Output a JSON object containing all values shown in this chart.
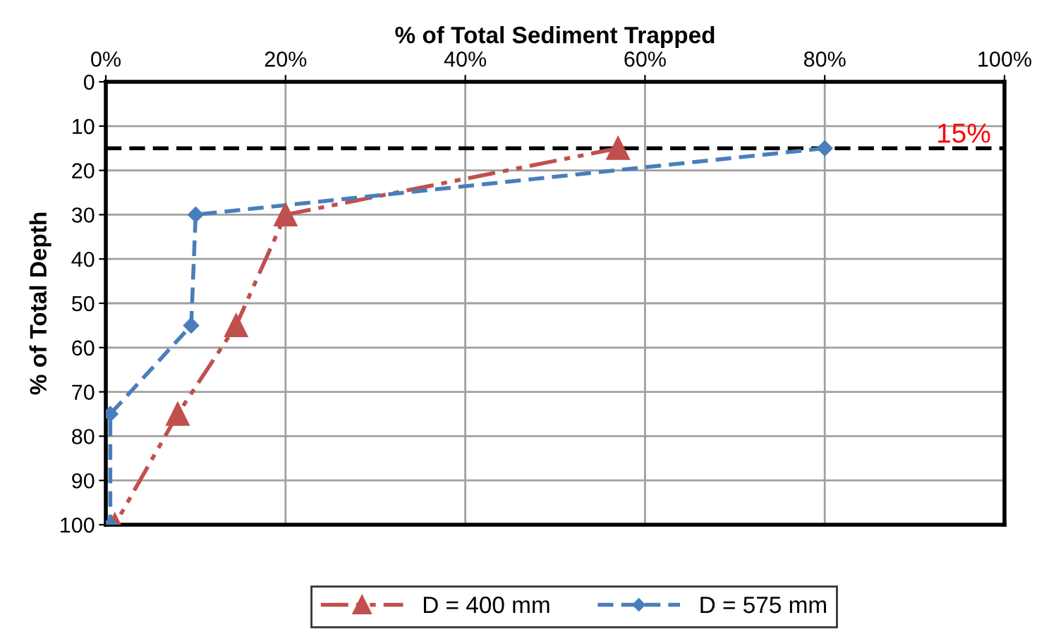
{
  "chart_data": {
    "type": "line",
    "xlabel": "% of Total Sediment Trapped",
    "ylabel": "% of Total Depth",
    "xlim": [
      0,
      100
    ],
    "xticks": [
      {
        "value": 0,
        "label": "0%"
      },
      {
        "value": 20,
        "label": "20%"
      },
      {
        "value": 40,
        "label": "40%"
      },
      {
        "value": 60,
        "label": "60%"
      },
      {
        "value": 80,
        "label": "80%"
      },
      {
        "value": 100,
        "label": "100%"
      }
    ],
    "ylim": [
      100,
      0
    ],
    "yticks": [
      0,
      10,
      20,
      30,
      40,
      50,
      60,
      70,
      80,
      90,
      100
    ],
    "grid": true,
    "legend": "bottom",
    "series": [
      {
        "name": "D = 400 mm",
        "color": "#c0504d",
        "marker": "triangle",
        "line_style": "dashdot",
        "x": [
          57,
          20,
          14.5,
          8,
          1
        ],
        "values": [
          15,
          30,
          55,
          75,
          100
        ]
      },
      {
        "name": "D = 575 mm",
        "color": "#4a7ebb",
        "marker": "diamond",
        "line_style": "dashed",
        "x": [
          80,
          10,
          9.5,
          0.5,
          0.5
        ],
        "values": [
          15,
          30,
          55,
          75,
          100
        ]
      }
    ],
    "ref_lines": [
      {
        "axis": "y",
        "value": 15,
        "label": "15%",
        "color": "#000000",
        "line_style": "dashed"
      }
    ]
  }
}
